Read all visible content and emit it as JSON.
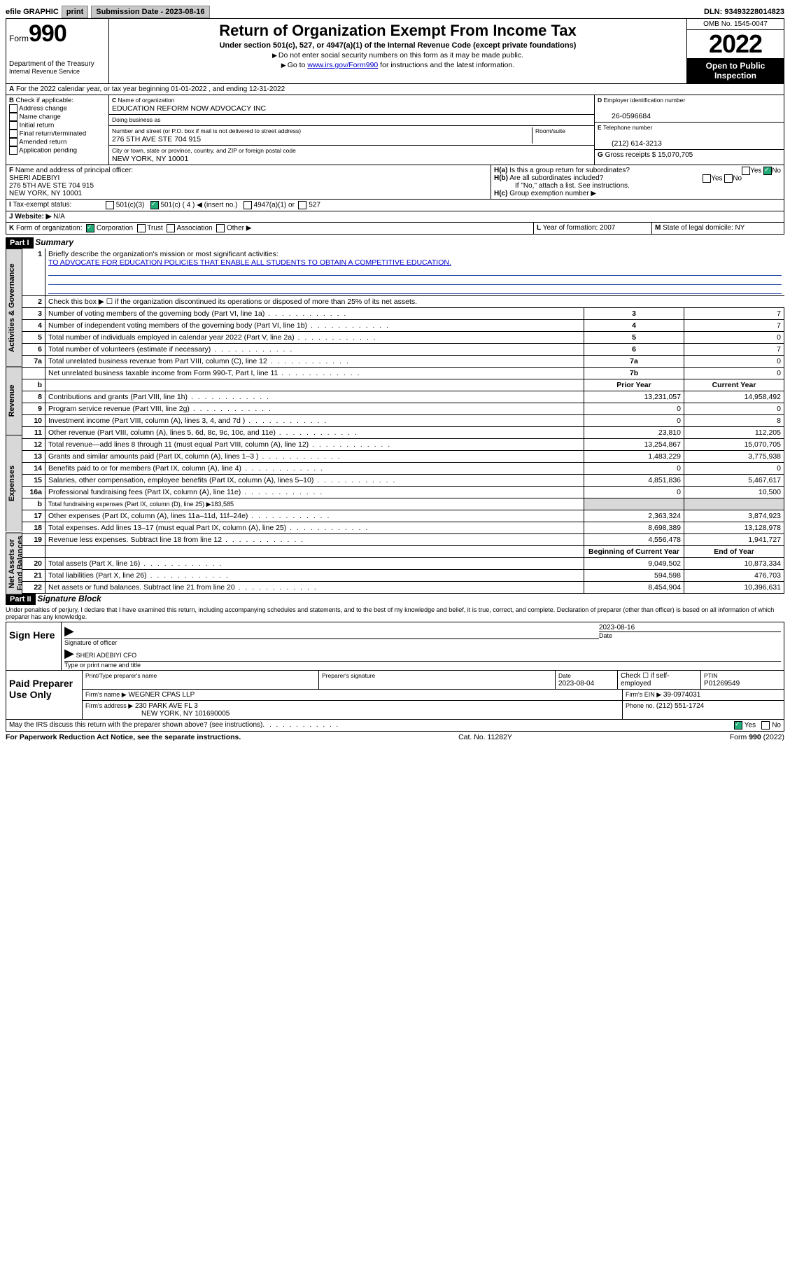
{
  "topbar": {
    "efile": "efile GRAPHIC",
    "print": "print",
    "subdate_label": "Submission Date - 2023-08-16",
    "dln": "DLN: 93493228014823"
  },
  "header": {
    "form_prefix": "Form",
    "form_num": "990",
    "dept": "Department of the Treasury",
    "irs": "Internal Revenue Service",
    "title": "Return of Organization Exempt From Income Tax",
    "sub": "Under section 501(c), 527, or 4947(a)(1) of the Internal Revenue Code (except private foundations)",
    "note1": "Do not enter social security numbers on this form as it may be made public.",
    "note2_pre": "Go to ",
    "note2_link": "www.irs.gov/Form990",
    "note2_post": " for instructions and the latest information.",
    "omb": "OMB No. 1545-0047",
    "year": "2022",
    "open": "Open to Public Inspection"
  },
  "A": {
    "text": "For the 2022 calendar year, or tax year beginning 01-01-2022   , and ending 12-31-2022"
  },
  "B": {
    "label": "Check if applicable:",
    "opts": [
      "Address change",
      "Name change",
      "Initial return",
      "Final return/terminated",
      "Amended return",
      "Application pending"
    ]
  },
  "C": {
    "name_label": "Name of organization",
    "name": "EDUCATION REFORM NOW ADVOCACY INC",
    "dba_label": "Doing business as",
    "addr_label": "Number and street (or P.O. box if mail is not delivered to street address)",
    "room_label": "Room/suite",
    "addr": "276 5TH AVE STE 704 915",
    "city_label": "City or town, state or province, country, and ZIP or foreign postal code",
    "city": "NEW YORK, NY  10001"
  },
  "D": {
    "label": "Employer identification number",
    "val": "26-0596684"
  },
  "E": {
    "label": "Telephone number",
    "val": "(212) 614-3213"
  },
  "G": {
    "label": "Gross receipts $",
    "val": "15,070,705"
  },
  "F": {
    "label": "Name and address of principal officer:",
    "l1": "SHERI ADEBIYI",
    "l2": "276 5TH AVE STE 704 915",
    "l3": "NEW YORK, NY  10001"
  },
  "H": {
    "a": "Is this a group return for subordinates?",
    "b": "Are all subordinates included?",
    "note": "If \"No,\" attach a list. See instructions.",
    "c": "Group exemption number ▶",
    "yes": "Yes",
    "no": "No"
  },
  "I": {
    "label": "Tax-exempt status:",
    "o1": "501(c)(3)",
    "o2": "501(c) ( 4 ) ◀ (insert no.)",
    "o3": "4947(a)(1) or",
    "o4": "527"
  },
  "J": {
    "label": "Website: ▶",
    "val": "N/A"
  },
  "K": {
    "label": "Form of organization:",
    "opts": [
      "Corporation",
      "Trust",
      "Association",
      "Other ▶"
    ]
  },
  "L": {
    "label": "Year of formation:",
    "val": "2007"
  },
  "M": {
    "label": "State of legal domicile:",
    "val": "NY"
  },
  "part1": {
    "bar": "Part I",
    "title": "Summary",
    "q1a": "Briefly describe the organization's mission or most significant activities:",
    "q1b": "TO ADVOCATE FOR EDUCATION POLICIES THAT ENABLE ALL STUDENTS TO OBTAIN A COMPETITIVE EDUCATION.",
    "q2": "Check this box ▶ ☐  if the organization discontinued its operations or disposed of more than 25% of its net assets.",
    "rows_gov": [
      {
        "n": "3",
        "t": "Number of voting members of the governing body (Part VI, line 1a)",
        "b": "3",
        "v": "7"
      },
      {
        "n": "4",
        "t": "Number of independent voting members of the governing body (Part VI, line 1b)",
        "b": "4",
        "v": "7"
      },
      {
        "n": "5",
        "t": "Total number of individuals employed in calendar year 2022 (Part V, line 2a)",
        "b": "5",
        "v": "0"
      },
      {
        "n": "6",
        "t": "Total number of volunteers (estimate if necessary)",
        "b": "6",
        "v": "7"
      },
      {
        "n": "7a",
        "t": "Total unrelated business revenue from Part VIII, column (C), line 12",
        "b": "7a",
        "v": "0"
      },
      {
        "n": "",
        "t": "Net unrelated business taxable income from Form 990-T, Part I, line 11",
        "b": "7b",
        "v": "0"
      }
    ],
    "col_prior": "Prior Year",
    "col_curr": "Current Year",
    "rows_rev": [
      {
        "n": "8",
        "t": "Contributions and grants (Part VIII, line 1h)",
        "p": "13,231,057",
        "c": "14,958,492"
      },
      {
        "n": "9",
        "t": "Program service revenue (Part VIII, line 2g)",
        "p": "0",
        "c": "0"
      },
      {
        "n": "10",
        "t": "Investment income (Part VIII, column (A), lines 3, 4, and 7d )",
        "p": "0",
        "c": "8"
      },
      {
        "n": "11",
        "t": "Other revenue (Part VIII, column (A), lines 5, 6d, 8c, 9c, 10c, and 11e)",
        "p": "23,810",
        "c": "112,205"
      },
      {
        "n": "12",
        "t": "Total revenue—add lines 8 through 11 (must equal Part VIII, column (A), line 12)",
        "p": "13,254,867",
        "c": "15,070,705"
      }
    ],
    "rows_exp": [
      {
        "n": "13",
        "t": "Grants and similar amounts paid (Part IX, column (A), lines 1–3 )",
        "p": "1,483,229",
        "c": "3,775,938"
      },
      {
        "n": "14",
        "t": "Benefits paid to or for members (Part IX, column (A), line 4)",
        "p": "0",
        "c": "0"
      },
      {
        "n": "15",
        "t": "Salaries, other compensation, employee benefits (Part IX, column (A), lines 5–10)",
        "p": "4,851,836",
        "c": "5,467,617"
      },
      {
        "n": "16a",
        "t": "Professional fundraising fees (Part IX, column (A), line 11e)",
        "p": "0",
        "c": "10,500"
      },
      {
        "n": "b",
        "t": "Total fundraising expenses (Part IX, column (D), line 25) ▶183,585",
        "p": "",
        "c": "",
        "noamt": true
      },
      {
        "n": "17",
        "t": "Other expenses (Part IX, column (A), lines 11a–11d, 11f–24e)",
        "p": "2,363,324",
        "c": "3,874,923"
      },
      {
        "n": "18",
        "t": "Total expenses. Add lines 13–17 (must equal Part IX, column (A), line 25)",
        "p": "8,698,389",
        "c": "13,128,978"
      },
      {
        "n": "19",
        "t": "Revenue less expenses. Subtract line 18 from line 12",
        "p": "4,556,478",
        "c": "1,941,727"
      }
    ],
    "col_beg": "Beginning of Current Year",
    "col_end": "End of Year",
    "rows_net": [
      {
        "n": "20",
        "t": "Total assets (Part X, line 16)",
        "p": "9,049,502",
        "c": "10,873,334"
      },
      {
        "n": "21",
        "t": "Total liabilities (Part X, line 26)",
        "p": "594,598",
        "c": "476,703"
      },
      {
        "n": "22",
        "t": "Net assets or fund balances. Subtract line 21 from line 20",
        "p": "8,454,904",
        "c": "10,396,631"
      }
    ],
    "tabs": [
      "Activities & Governance",
      "Revenue",
      "Expenses",
      "Net Assets or Fund Balances"
    ]
  },
  "part2": {
    "bar": "Part II",
    "title": "Signature Block",
    "decl": "Under penalties of perjury, I declare that I have examined this return, including accompanying schedules and statements, and to the best of my knowledge and belief, it is true, correct, and complete. Declaration of preparer (other than officer) is based on all information of which preparer has any knowledge.",
    "sign_here": "Sign Here",
    "sig_officer": "Signature of officer",
    "sig_date": "2023-08-16",
    "date_lbl": "Date",
    "officer_name": "SHERI ADEBIYI  CFO",
    "officer_lbl": "Type or print name and title",
    "paid": "Paid Preparer Use Only",
    "prep_name_lbl": "Print/Type preparer's name",
    "prep_sig_lbl": "Preparer's signature",
    "prep_date_lbl": "Date",
    "prep_date": "2023-08-04",
    "prep_check": "Check ☐ if self-employed",
    "ptin_lbl": "PTIN",
    "ptin": "P01269549",
    "firm_name_lbl": "Firm's name   ▶",
    "firm_name": "WEGNER CPAS LLP",
    "firm_ein_lbl": "Firm's EIN ▶",
    "firm_ein": "39-0974031",
    "firm_addr_lbl": "Firm's address ▶",
    "firm_addr1": "230 PARK AVE FL 3",
    "firm_addr2": "NEW YORK, NY  101690005",
    "firm_phone_lbl": "Phone no.",
    "firm_phone": "(212) 551-1724",
    "may": "May the IRS discuss this return with the preparer shown above? (see instructions)",
    "yes": "Yes",
    "no": "No"
  },
  "footer": {
    "l": "For Paperwork Reduction Act Notice, see the separate instructions.",
    "m": "Cat. No. 11282Y",
    "r": "Form 990 (2022)"
  }
}
